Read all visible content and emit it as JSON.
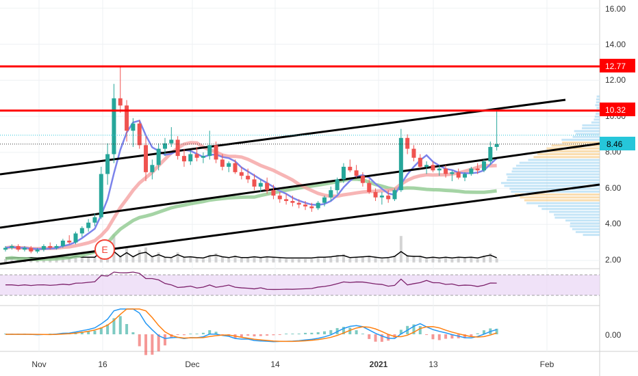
{
  "colors": {
    "up": "#26a69a",
    "down": "#ef5350",
    "resistance": "#ff0000",
    "channel": "#000000",
    "ma_fast": "#7b83eb",
    "ma_mid": "#f5a3a3",
    "ma_slow": "#8fc98f",
    "rsi": "#7b1f6a",
    "rsi_band": "#e9d5f5",
    "macd": "#2196f3",
    "signal": "#ff7f0e",
    "price_tag": "#26c6da",
    "volume": "#b0b0b0",
    "earnings": "#f44336"
  },
  "price_axis": {
    "ticks": [
      "16.00",
      "14.00",
      "12.00",
      "10.00",
      "8.00",
      "6.00",
      "4.00",
      "2.00"
    ],
    "tick_values": [
      16,
      14,
      12,
      10,
      8,
      6,
      4,
      2
    ],
    "range": [
      1.5,
      16.4
    ]
  },
  "macd_axis": {
    "ticks": [
      "0.00"
    ]
  },
  "time_axis": {
    "labels": [
      "Nov",
      "16",
      "Dec",
      "14",
      "2021",
      "13",
      "Feb"
    ]
  },
  "price_labels": {
    "resistance_high": "12.77",
    "resistance_low": "10.32",
    "last_price": "8.46"
  },
  "earnings_marker": "E",
  "chart_data": {
    "type": "candlestick",
    "ohlc": [
      [
        2.6,
        2.8,
        2.5,
        2.7
      ],
      [
        2.7,
        2.9,
        2.6,
        2.8
      ],
      [
        2.8,
        2.9,
        2.5,
        2.6
      ],
      [
        2.6,
        2.8,
        2.5,
        2.7
      ],
      [
        2.7,
        2.8,
        2.4,
        2.5
      ],
      [
        2.5,
        2.7,
        2.4,
        2.6
      ],
      [
        2.6,
        2.9,
        2.5,
        2.8
      ],
      [
        2.8,
        3.0,
        2.6,
        2.7
      ],
      [
        2.7,
        2.9,
        2.6,
        2.8
      ],
      [
        2.8,
        3.2,
        2.7,
        3.1
      ],
      [
        3.1,
        3.4,
        2.9,
        3.0
      ],
      [
        3.0,
        3.6,
        2.9,
        3.5
      ],
      [
        3.5,
        3.9,
        3.3,
        3.8
      ],
      [
        3.8,
        4.3,
        3.6,
        4.1
      ],
      [
        4.1,
        4.6,
        3.9,
        4.4
      ],
      [
        4.4,
        7.2,
        4.3,
        6.8
      ],
      [
        6.8,
        8.5,
        6.2,
        7.9
      ],
      [
        7.9,
        11.8,
        7.4,
        11.0
      ],
      [
        11.0,
        12.77,
        10.2,
        10.6
      ],
      [
        10.6,
        10.9,
        8.6,
        9.2
      ],
      [
        9.2,
        9.9,
        8.3,
        9.6
      ],
      [
        9.6,
        9.8,
        8.2,
        8.4
      ],
      [
        8.4,
        8.9,
        6.4,
        6.9
      ],
      [
        6.9,
        7.6,
        6.5,
        7.3
      ],
      [
        7.3,
        8.5,
        7.0,
        8.2
      ],
      [
        8.2,
        8.8,
        7.8,
        8.5
      ],
      [
        8.5,
        9.4,
        8.3,
        8.7
      ],
      [
        8.7,
        8.9,
        7.6,
        7.8
      ],
      [
        7.8,
        8.2,
        7.2,
        7.5
      ],
      [
        7.5,
        8.1,
        7.3,
        7.9
      ],
      [
        7.9,
        8.3,
        7.5,
        7.7
      ],
      [
        7.7,
        8.0,
        7.4,
        7.8
      ],
      [
        7.8,
        9.2,
        7.6,
        8.4
      ],
      [
        8.4,
        8.6,
        7.4,
        7.6
      ],
      [
        7.6,
        7.9,
        7.0,
        7.2
      ],
      [
        7.2,
        7.5,
        6.9,
        7.4
      ],
      [
        7.4,
        7.6,
        6.8,
        6.9
      ],
      [
        6.9,
        7.2,
        6.5,
        6.7
      ],
      [
        6.7,
        7.1,
        6.3,
        6.5
      ],
      [
        6.5,
        6.8,
        5.9,
        6.1
      ],
      [
        6.1,
        6.5,
        5.8,
        6.3
      ],
      [
        6.3,
        6.6,
        5.7,
        5.9
      ],
      [
        5.9,
        6.2,
        5.4,
        5.6
      ],
      [
        5.6,
        5.8,
        5.2,
        5.4
      ],
      [
        5.4,
        5.7,
        5.1,
        5.3
      ],
      [
        5.3,
        5.6,
        5.0,
        5.2
      ],
      [
        5.2,
        5.4,
        4.9,
        5.1
      ],
      [
        5.1,
        5.3,
        4.8,
        5.0
      ],
      [
        5.0,
        5.2,
        4.7,
        4.9
      ],
      [
        4.9,
        5.3,
        4.8,
        5.2
      ],
      [
        5.2,
        5.6,
        5.0,
        5.5
      ],
      [
        5.5,
        6.1,
        5.3,
        5.9
      ],
      [
        5.9,
        6.6,
        5.7,
        6.5
      ],
      [
        6.5,
        7.4,
        6.3,
        7.2
      ],
      [
        7.2,
        7.6,
        6.9,
        7.0
      ],
      [
        7.0,
        7.3,
        6.6,
        6.7
      ],
      [
        6.7,
        6.9,
        6.1,
        6.3
      ],
      [
        6.3,
        6.5,
        5.7,
        5.8
      ],
      [
        5.8,
        6.0,
        5.3,
        5.5
      ],
      [
        5.5,
        5.8,
        5.1,
        5.6
      ],
      [
        5.6,
        5.9,
        5.2,
        5.4
      ],
      [
        5.4,
        6.0,
        5.3,
        5.9
      ],
      [
        5.9,
        9.3,
        5.8,
        8.8
      ],
      [
        8.8,
        9.0,
        7.9,
        8.2
      ],
      [
        8.2,
        8.4,
        7.5,
        7.7
      ],
      [
        7.7,
        7.9,
        7.1,
        7.2
      ],
      [
        7.2,
        7.5,
        6.8,
        7.3
      ],
      [
        7.3,
        7.5,
        6.9,
        7.0
      ],
      [
        7.0,
        7.3,
        6.7,
        7.1
      ],
      [
        7.1,
        7.3,
        6.6,
        6.8
      ],
      [
        6.8,
        7.0,
        6.4,
        6.9
      ],
      [
        6.9,
        7.1,
        6.5,
        6.6
      ],
      [
        6.6,
        6.9,
        6.4,
        6.8
      ],
      [
        6.8,
        7.2,
        6.7,
        7.1
      ],
      [
        7.1,
        7.4,
        6.8,
        7.0
      ],
      [
        7.0,
        7.6,
        6.9,
        7.5
      ],
      [
        7.5,
        8.6,
        7.3,
        8.3
      ],
      [
        8.3,
        10.32,
        8.1,
        8.46
      ]
    ],
    "x_labels": [
      "Nov",
      "16",
      "Dec",
      "14",
      "2021",
      "13",
      "Feb"
    ],
    "y_range": [
      1.5,
      16.4
    ],
    "horizontal_levels": [
      12.77,
      10.32
    ],
    "last_price": 8.46,
    "ylabel": ""
  }
}
